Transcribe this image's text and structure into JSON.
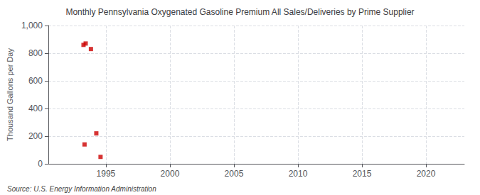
{
  "chart_data": {
    "type": "scatter",
    "title": "Monthly Pennsylvania Oxygenated Gasoline Premium All Sales/Deliveries by Prime Supplier",
    "ylabel": "Thousand Gallons per Day",
    "annotations": [
      "Source: U.S. Energy Information Administration"
    ],
    "x": [
      1993.25,
      1993.42,
      1993.83,
      1993.33,
      1994.25,
      1994.58
    ],
    "values": [
      860,
      870,
      830,
      140,
      220,
      50
    ],
    "color": "#cc0000",
    "marker": "square",
    "xlim": [
      1990.5,
      2023
    ],
    "xticks": [
      1995,
      2000,
      2005,
      2010,
      2015,
      2020
    ],
    "ylim": [
      0,
      1000
    ],
    "yticks": [
      0,
      200,
      400,
      600,
      800,
      {
        "value": 1000,
        "label": "1,000"
      }
    ],
    "grid": true
  }
}
